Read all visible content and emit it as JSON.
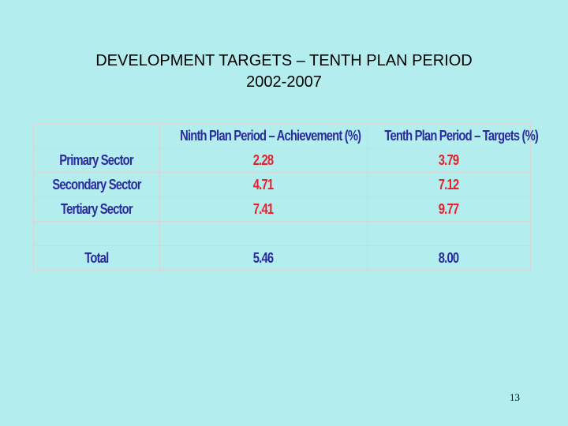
{
  "slide": {
    "title_line1": "DEVELOPMENT TARGETS – TENTH PLAN PERIOD",
    "title_line2": "2002-2007",
    "page_number": "13"
  },
  "table": {
    "headers": [
      "",
      "Ninth Plan Period – Achievement (%)",
      "Tenth Plan Period – Targets (%)"
    ],
    "rows": [
      {
        "label": "Primary Sector",
        "ninth": "2.28",
        "tenth": "3.79"
      },
      {
        "label": "Secondary Sector",
        "ninth": "4.71",
        "tenth": "7.12"
      },
      {
        "label": "Tertiary Sector",
        "ninth": "7.41",
        "tenth": "9.77"
      },
      {
        "label": "",
        "ninth": "",
        "tenth": ""
      },
      {
        "label": "Total",
        "ninth": "5.46",
        "tenth": "8.00"
      }
    ]
  },
  "colors": {
    "background": "#b3eded",
    "label_text": "#2b2b9e",
    "value_text": "#e8202a"
  }
}
